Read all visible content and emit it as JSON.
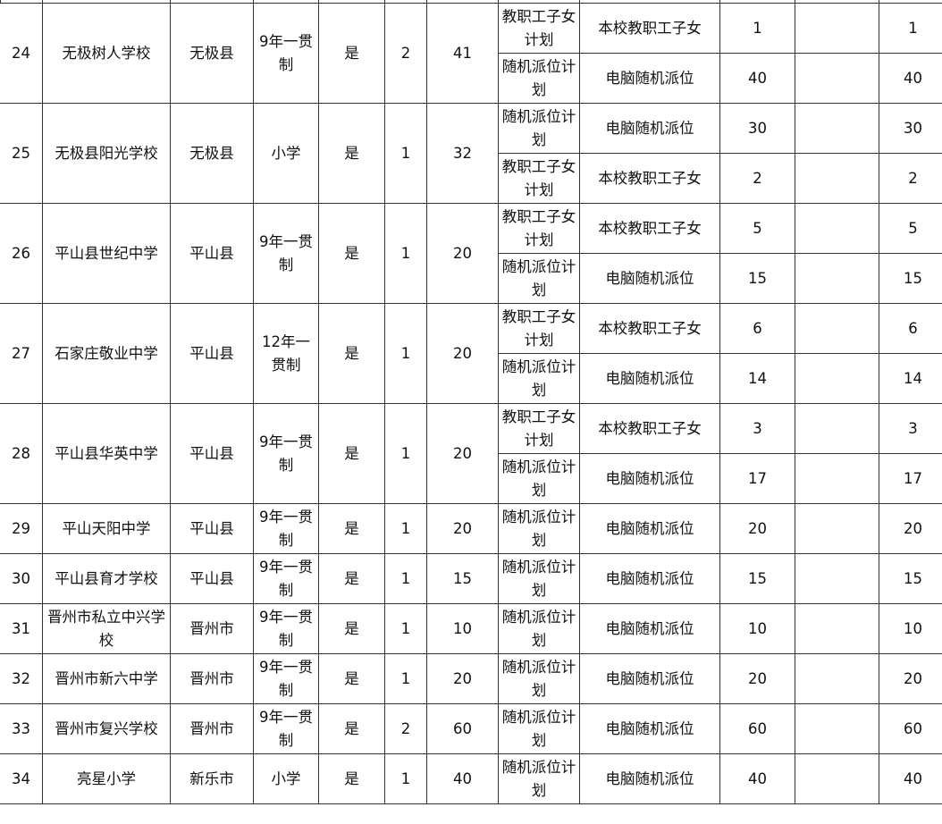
{
  "rows": [
    {
      "no": "24",
      "school": "无极树人学校",
      "county": "无极县",
      "type": "9年一贯制",
      "flag": "是",
      "classes": "2",
      "total": "41",
      "plans": [
        {
          "plan": "教职工子女计划",
          "method": "本校教职工子女",
          "count": "1",
          "extra": "",
          "sum": "1"
        },
        {
          "plan": "随机派位计划",
          "method": "电脑随机派位",
          "count": "40",
          "extra": "",
          "sum": "40"
        }
      ]
    },
    {
      "no": "25",
      "school": "无极县阳光学校",
      "county": "无极县",
      "type": "小学",
      "flag": "是",
      "classes": "1",
      "total": "32",
      "plans": [
        {
          "plan": "随机派位计划",
          "method": "电脑随机派位",
          "count": "30",
          "extra": "",
          "sum": "30"
        },
        {
          "plan": "教职工子女计划",
          "method": "本校教职工子女",
          "count": "2",
          "extra": "",
          "sum": "2"
        }
      ]
    },
    {
      "no": "26",
      "school": "平山县世纪中学",
      "county": "平山县",
      "type": "9年一贯制",
      "flag": "是",
      "classes": "1",
      "total": "20",
      "plans": [
        {
          "plan": "教职工子女计划",
          "method": "本校教职工子女",
          "count": "5",
          "extra": "",
          "sum": "5"
        },
        {
          "plan": "随机派位计划",
          "method": "电脑随机派位",
          "count": "15",
          "extra": "",
          "sum": "15"
        }
      ]
    },
    {
      "no": "27",
      "school": "石家庄敬业中学",
      "county": "平山县",
      "type": "12年一贯制",
      "flag": "是",
      "classes": "1",
      "total": "20",
      "plans": [
        {
          "plan": "教职工子女计划",
          "method": "本校教职工子女",
          "count": "6",
          "extra": "",
          "sum": "6"
        },
        {
          "plan": "随机派位计划",
          "method": "电脑随机派位",
          "count": "14",
          "extra": "",
          "sum": "14"
        }
      ]
    },
    {
      "no": "28",
      "school": "平山县华英中学",
      "county": "平山县",
      "type": "9年一贯制",
      "flag": "是",
      "classes": "1",
      "total": "20",
      "plans": [
        {
          "plan": "教职工子女计划",
          "method": "本校教职工子女",
          "count": "3",
          "extra": "",
          "sum": "3"
        },
        {
          "plan": "随机派位计划",
          "method": "电脑随机派位",
          "count": "17",
          "extra": "",
          "sum": "17"
        }
      ]
    },
    {
      "no": "29",
      "school": "平山天阳中学",
      "county": "平山县",
      "type": "9年一贯制",
      "flag": "是",
      "classes": "1",
      "total": "20",
      "plans": [
        {
          "plan": "随机派位计划",
          "method": "电脑随机派位",
          "count": "20",
          "extra": "",
          "sum": "20"
        }
      ]
    },
    {
      "no": "30",
      "school": "平山县育才学校",
      "county": "平山县",
      "type": "9年一贯制",
      "flag": "是",
      "classes": "1",
      "total": "15",
      "plans": [
        {
          "plan": "随机派位计划",
          "method": "电脑随机派位",
          "count": "15",
          "extra": "",
          "sum": "15"
        }
      ]
    },
    {
      "no": "31",
      "school": "晋州市私立中兴学校",
      "county": "晋州市",
      "type": "9年一贯制",
      "flag": "是",
      "classes": "1",
      "total": "10",
      "plans": [
        {
          "plan": "随机派位计划",
          "method": "电脑随机派位",
          "count": "10",
          "extra": "",
          "sum": "10"
        }
      ]
    },
    {
      "no": "32",
      "school": "晋州市新六中学",
      "county": "晋州市",
      "type": "9年一贯制",
      "flag": "是",
      "classes": "1",
      "total": "20",
      "plans": [
        {
          "plan": "随机派位计划",
          "method": "电脑随机派位",
          "count": "20",
          "extra": "",
          "sum": "20"
        }
      ]
    },
    {
      "no": "33",
      "school": "晋州市复兴学校",
      "county": "晋州市",
      "type": "9年一贯制",
      "flag": "是",
      "classes": "2",
      "total": "60",
      "plans": [
        {
          "plan": "随机派位计划",
          "method": "电脑随机派位",
          "count": "60",
          "extra": "",
          "sum": "60"
        }
      ]
    },
    {
      "no": "34",
      "school": "亮星小学",
      "county": "新乐市",
      "type": "小学",
      "flag": "是",
      "classes": "1",
      "total": "40",
      "plans": [
        {
          "plan": "随机派位计划",
          "method": "电脑随机派位",
          "count": "40",
          "extra": "",
          "sum": "40"
        }
      ]
    }
  ]
}
